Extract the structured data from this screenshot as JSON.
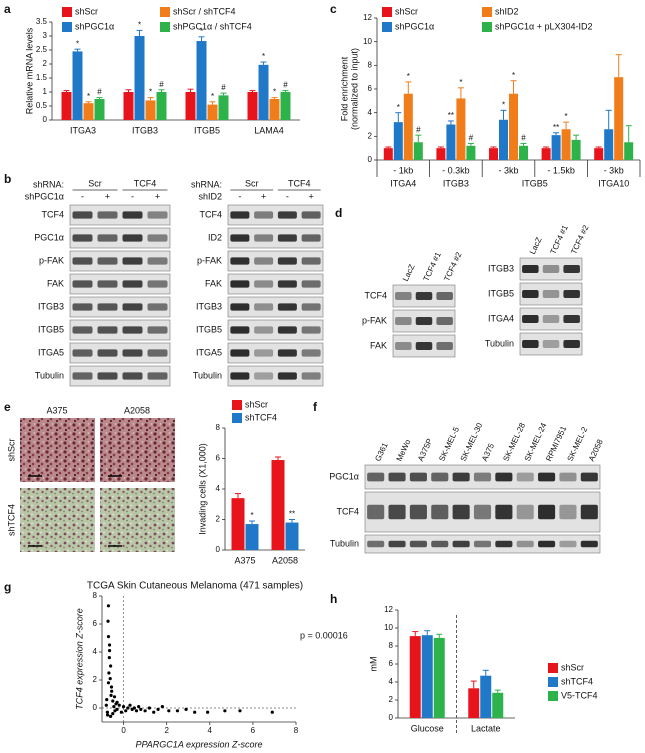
{
  "panel_labels": [
    "a",
    "b",
    "c",
    "d",
    "e",
    "f",
    "g",
    "h"
  ],
  "chart_data": [
    {
      "type": "bar",
      "y_label": "Relative mRNA levels",
      "categories": [
        "ITGA3",
        "ITGB3",
        "ITGB5",
        "LAMA4"
      ],
      "ylim": [
        0,
        3.5
      ],
      "yticks": [
        0,
        0.5,
        1,
        1.5,
        2,
        2.5,
        3,
        3.5
      ],
      "series": [
        {
          "name": "shScr",
          "color": "#e8141c",
          "values": [
            1.0,
            1.0,
            1.0,
            1.0
          ],
          "errors": [
            0.05,
            0.08,
            0.1,
            0.05
          ],
          "markers": [
            null,
            null,
            null,
            null
          ]
        },
        {
          "name": "shPGC1α",
          "color": "#1f78c8",
          "values": [
            2.45,
            3.0,
            2.82,
            1.97
          ],
          "errors": [
            0.08,
            0.2,
            0.15,
            0.1
          ],
          "markers": [
            "*",
            "*",
            "*",
            "*"
          ]
        },
        {
          "name": "shScr / shTCF4",
          "color": "#f07d1a",
          "values": [
            0.6,
            0.7,
            0.55,
            0.75
          ],
          "errors": [
            0.05,
            0.1,
            0.1,
            0.05
          ],
          "markers": [
            "*",
            "*",
            "*",
            "*"
          ]
        },
        {
          "name": "shPGC1α / shTCF4",
          "color": "#2db34a",
          "values": [
            0.75,
            1.0,
            0.88,
            1.0
          ],
          "errors": [
            0.05,
            0.08,
            0.08,
            0.05
          ],
          "markers": [
            "#",
            "#",
            "#",
            "#"
          ]
        }
      ]
    },
    {
      "type": "bar",
      "y_label": [
        "Fold enrichment",
        "(normalized to input)"
      ],
      "categories": [
        "- 1kb",
        "- 0.3kb",
        "- 3kb",
        "- 1.5kb",
        "- 3kb"
      ],
      "group_labels": [
        "ITGA4",
        "ITGB3",
        "ITGB5",
        null,
        "ITGA10"
      ],
      "ylim": [
        0,
        12
      ],
      "yticks": [
        0,
        2,
        4,
        6,
        8,
        10,
        12
      ],
      "series": [
        {
          "name": "shScr",
          "color": "#e8141c",
          "values": [
            1.0,
            1.0,
            1.0,
            1.0,
            1.0
          ],
          "errors": [
            0.1,
            0.1,
            0.1,
            0.1,
            0.1
          ],
          "markers": [
            null,
            null,
            null,
            null,
            null
          ]
        },
        {
          "name": "shPGC1α",
          "color": "#1f78c8",
          "values": [
            3.2,
            3.0,
            3.4,
            2.1,
            2.6
          ],
          "errors": [
            0.8,
            0.3,
            0.8,
            0.2,
            1.6
          ],
          "markers": [
            "*",
            "**",
            "*",
            "**",
            null
          ]
        },
        {
          "name": "shID2",
          "color": "#f07d1a",
          "values": [
            5.6,
            5.2,
            5.6,
            2.6,
            7.0
          ],
          "errors": [
            1.0,
            0.9,
            1.1,
            0.6,
            1.9
          ],
          "markers": [
            "*",
            "*",
            "*",
            "*",
            null
          ]
        },
        {
          "name": "shPGC1α + pLX304-ID2",
          "color": "#2db34a",
          "values": [
            1.5,
            1.2,
            1.2,
            1.7,
            1.5
          ],
          "errors": [
            0.6,
            0.2,
            0.2,
            0.4,
            1.4
          ],
          "markers": [
            "#",
            "#",
            "#",
            null,
            null
          ]
        }
      ]
    },
    {
      "type": "bar",
      "y_label": "Invading cells (X1,000)",
      "categories": [
        "A375",
        "A2058"
      ],
      "ylim": [
        0,
        8
      ],
      "yticks": [
        0,
        2,
        4,
        6,
        8
      ],
      "series": [
        {
          "name": "shScr",
          "color": "#e8141c",
          "values": [
            3.4,
            5.9
          ],
          "errors": [
            0.3,
            0.2
          ],
          "markers": [
            null,
            null
          ]
        },
        {
          "name": "shTCF4",
          "color": "#1f78c8",
          "values": [
            1.7,
            1.8
          ],
          "errors": [
            0.2,
            0.2
          ],
          "markers": [
            "*",
            "**"
          ]
        }
      ]
    },
    {
      "type": "scatter",
      "title": "TCGA Skin Cutaneous Melanoma (471 samples)",
      "annotation": "p = 0.00016",
      "x_label": "PPARGC1A expression Z-score",
      "y_label": "TCF4 expression Z-score",
      "xlim": [
        -1,
        8
      ],
      "xticks": [
        0,
        2,
        4,
        6,
        8
      ],
      "ylim": [
        -1,
        8
      ],
      "yticks": [
        0,
        2,
        4,
        6,
        8
      ],
      "zero_lines": true,
      "color": "#000000",
      "x": [
        -0.8,
        -0.75,
        -0.7,
        -0.72,
        -0.65,
        -0.6,
        -0.68,
        -0.55,
        -0.5,
        -0.45,
        -0.4,
        -0.35,
        -0.3,
        -0.2,
        -0.1,
        0,
        0.1,
        0.2,
        0.3,
        0.4,
        0.5,
        0.6,
        0.7,
        0.8,
        1.0,
        1.2,
        1.4,
        1.6,
        1.8,
        2.1,
        2.5,
        2.9,
        3.3,
        3.9,
        4.7,
        5.4,
        6.9,
        -0.78,
        -0.7,
        -0.66,
        -0.62,
        -0.58,
        -0.74,
        -0.6,
        -0.5,
        -0.42,
        -0.3,
        -0.7,
        -0.65,
        -0.56
      ],
      "y": [
        0.2,
        -0.3,
        7.3,
        6.2,
        4.5,
        3.0,
        2.5,
        1.2,
        0.5,
        0.1,
        -0.2,
        0.3,
        -0.1,
        0.2,
        -0.3,
        0.1,
        -0.2,
        0,
        0.2,
        -0.1,
        0,
        -0.2,
        0.1,
        -0.1,
        -0.2,
        0,
        -0.3,
        -0.1,
        0.1,
        -0.2,
        -0.2,
        -0.1,
        -0.3,
        -0.3,
        -0.2,
        -0.2,
        -0.3,
        0.6,
        1.8,
        3.6,
        2.1,
        0.9,
        -0.5,
        -0.6,
        -0.4,
        0.8,
        0.4,
        5.1,
        4.1,
        1.5
      ]
    },
    {
      "type": "bar",
      "y_label": "mM",
      "categories": [
        "Glucose",
        "Lactate"
      ],
      "category_divider": true,
      "ylim": [
        0,
        12
      ],
      "yticks": [
        0,
        2,
        4,
        6,
        8,
        10,
        12
      ],
      "series": [
        {
          "name": "shScr",
          "color": "#e8141c",
          "values": [
            9.1,
            3.3
          ],
          "errors": [
            0.5,
            0.8
          ],
          "markers": [
            null,
            null
          ]
        },
        {
          "name": "shTCF4",
          "color": "#1f78c8",
          "values": [
            9.2,
            4.7
          ],
          "errors": [
            0.5,
            0.6
          ],
          "markers": [
            null,
            null
          ]
        },
        {
          "name": "V5-TCF4",
          "color": "#2db34a",
          "values": [
            8.9,
            2.8
          ],
          "errors": [
            0.4,
            0.3
          ],
          "markers": [
            null,
            null
          ]
        }
      ]
    }
  ],
  "blots": {
    "b_left": {
      "header": "shRNA:",
      "groups": [
        "Scr",
        "TCF4"
      ],
      "treatment": "shPGC1α",
      "signs": [
        "-",
        "+",
        "-",
        "+"
      ],
      "rows": [
        "TCF4",
        "PGC1α",
        "p-FAK",
        "FAK",
        "ITGB3",
        "ITGB5",
        "ITGA5",
        "Tubulin"
      ]
    },
    "b_right": {
      "header": "shRNA:",
      "groups": [
        "Scr",
        "TCF4"
      ],
      "treatment": "shID2",
      "signs": [
        "-",
        "+",
        "-",
        "+"
      ],
      "rows": [
        "TCF4",
        "ID2",
        "p-FAK",
        "FAK",
        "ITGB3",
        "ITGB5",
        "ITGA5",
        "Tubulin"
      ]
    },
    "d_left": {
      "lanes": [
        "LacZ",
        "TCF4 #1",
        "TCF4 #2"
      ],
      "rows": [
        "TCF4",
        "p-FAK",
        "FAK"
      ]
    },
    "d_right": {
      "lanes": [
        "LacZ",
        "TCF4 #1",
        "TCF4 #2"
      ],
      "rows": [
        "ITGB3",
        "ITGB5",
        "ITGA4",
        "Tubulin"
      ]
    },
    "f": {
      "lanes": [
        "G361",
        "MeWo",
        "A375P",
        "SK-MEL-5",
        "SK-MEL-30",
        "A375",
        "SK-MEL-28",
        "SK-MEL-24",
        "RPMI7951",
        "SK-MEL-2",
        "A2058"
      ],
      "rows": [
        "PGC1α",
        "TCF4",
        "Tubulin"
      ]
    }
  },
  "micrographs": {
    "columns": [
      "A375",
      "A2058"
    ],
    "rows": [
      "shScr",
      "shTCF4"
    ]
  }
}
